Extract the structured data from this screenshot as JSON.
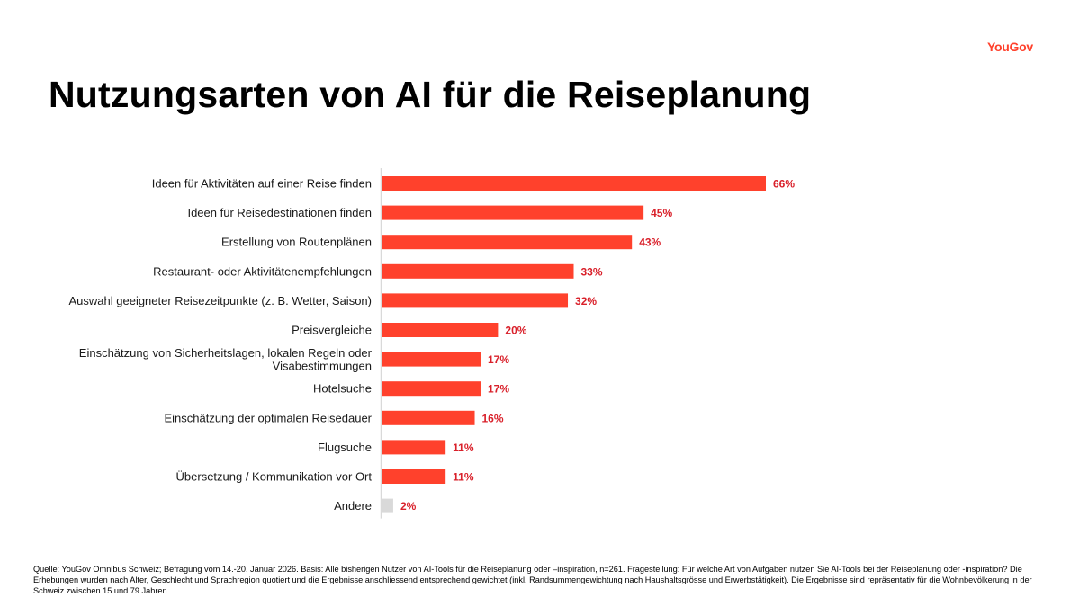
{
  "header": {
    "logo": "YouGov",
    "title": "Nutzungsarten von AI für die Reiseplanung"
  },
  "colors": {
    "bar": "#ff412c",
    "bar_other": "#d9d9d9",
    "value_label": "#d9202a",
    "axis": "#d9d9d9",
    "logo": "#ff412c"
  },
  "chart_data": {
    "type": "bar",
    "orientation": "horizontal",
    "title": "Nutzungsarten von AI für die Reiseplanung",
    "xlabel": "",
    "ylabel": "",
    "unit": "%",
    "xlim": [
      0,
      66
    ],
    "grid": false,
    "legend": "none",
    "categories": [
      "Ideen für Aktivitäten auf einer Reise finden",
      "Ideen für Reisedestinationen finden",
      "Erstellung von Routenplänen",
      "Restaurant- oder Aktivitätenempfehlungen",
      "Auswahl geeigneter Reisezeitpunkte (z. B. Wetter, Saison)",
      "Preisvergleiche",
      "Einschätzung von Sicherheitslagen, lokalen Regeln oder Visabestimmungen",
      "Hotelsuche",
      "Einschätzung der optimalen Reisedauer",
      "Flugsuche",
      "Übersetzung / Kommunikation vor Ort",
      "Andere"
    ],
    "category_lines": [
      [
        "Ideen für Aktivitäten auf einer Reise finden"
      ],
      [
        "Ideen für Reisedestinationen finden"
      ],
      [
        "Erstellung von Routenplänen"
      ],
      [
        "Restaurant- oder Aktivitätenempfehlungen"
      ],
      [
        "Auswahl geeigneter Reisezeitpunkte (z. B. Wetter, Saison)"
      ],
      [
        "Preisvergleiche"
      ],
      [
        "Einschätzung von Sicherheitslagen, lokalen Regeln oder",
        "Visabestimmungen"
      ],
      [
        "Hotelsuche"
      ],
      [
        "Einschätzung der optimalen Reisedauer"
      ],
      [
        "Flugsuche"
      ],
      [
        "Übersetzung / Kommunikation vor Ort"
      ],
      [
        "Andere"
      ]
    ],
    "values": [
      66,
      45,
      43,
      33,
      32,
      20,
      17,
      17,
      16,
      11,
      11,
      2
    ],
    "value_labels": [
      "66%",
      "45%",
      "43%",
      "33%",
      "32%",
      "20%",
      "17%",
      "17%",
      "16%",
      "11%",
      "11%",
      "2%"
    ],
    "highlight_other": [
      false,
      false,
      false,
      false,
      false,
      false,
      false,
      false,
      false,
      false,
      false,
      true
    ]
  },
  "footer": {
    "source": "Quelle: YouGov Omnibus Schweiz; Befragung vom 14.-20. Januar 2026. Basis: Alle bisherigen Nutzer von AI-Tools für die Reiseplanung oder –inspiration, n=261. Fragestellung: Für welche Art von Aufgaben nutzen Sie AI-Tools bei der Reiseplanung oder -inspiration? Die Erhebungen wurden nach Alter, Geschlecht und Sprachregion quotiert und die Ergebnisse anschliessend entsprechend gewichtet (inkl. Randsummengewichtung nach Haushaltsgrösse und Erwerbstätigkeit). Die Ergebnisse sind repräsentativ für die Wohnbevölkerung in der Schweiz zwischen 15 und 79 Jahren."
  }
}
